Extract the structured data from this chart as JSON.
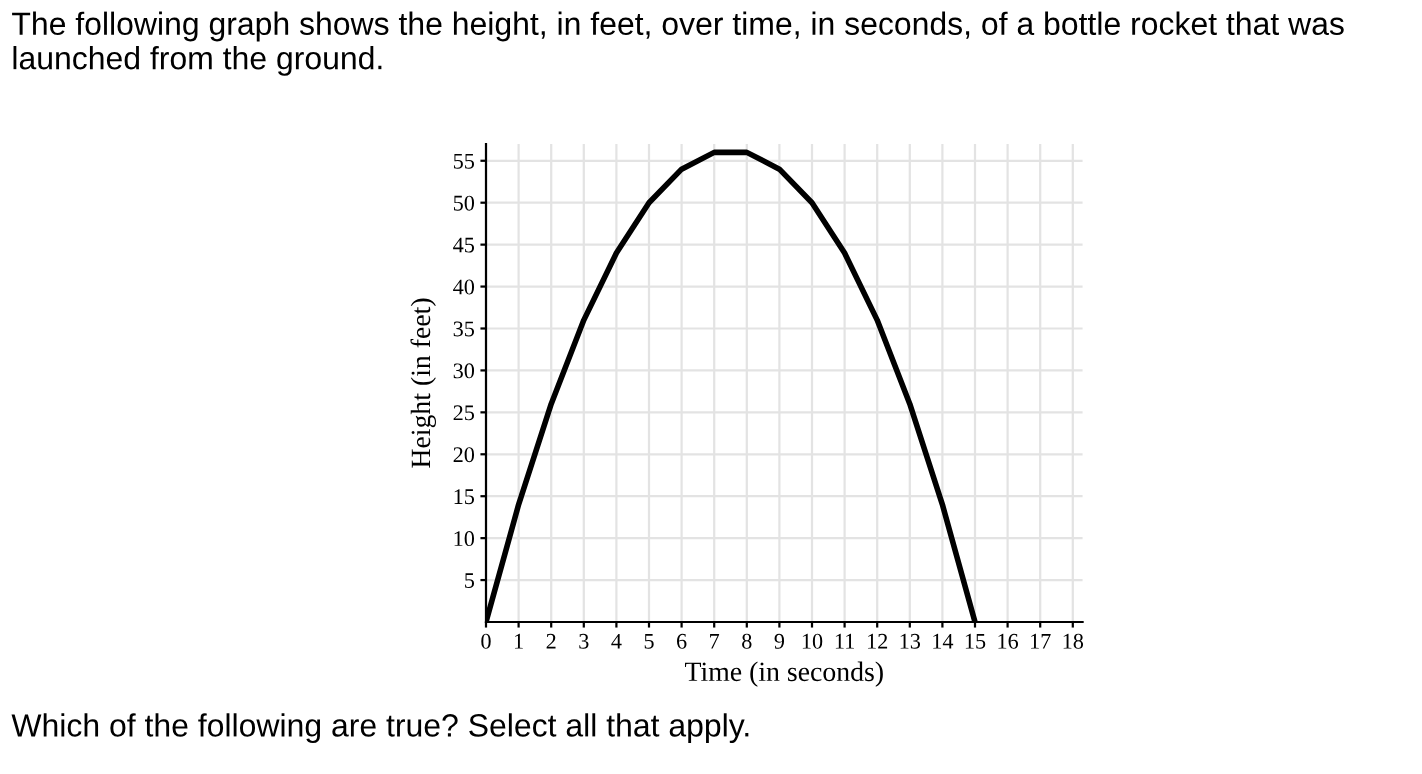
{
  "chart_data": {
    "type": "line",
    "title": "The following graph shows the height, in feet, over time, in seconds, of a bottle rocket that was launched from the ground.",
    "xlabel": "Time (in seconds)",
    "ylabel": "Height (in feet)",
    "annotations": [
      "Which of the following are true? Select all that apply."
    ],
    "series": [
      {
        "color": "#000000",
        "x": [
          0,
          1,
          2,
          3,
          4,
          5,
          6,
          7,
          7.5,
          8,
          9,
          10,
          11,
          12,
          13,
          14,
          15
        ],
        "values": [
          0,
          14,
          26,
          36,
          44,
          50,
          54,
          56,
          56,
          56,
          54,
          50,
          44,
          36,
          26,
          14,
          0
        ]
      }
    ],
    "xlim": [
      0,
      18.3
    ],
    "xticks": [
      0,
      1,
      2,
      3,
      4,
      5,
      6,
      7,
      8,
      9,
      10,
      11,
      12,
      13,
      14,
      15,
      16,
      17,
      18
    ],
    "ylim": [
      0,
      57
    ],
    "yticks": [
      5,
      10,
      15,
      20,
      25,
      30,
      35,
      40,
      45,
      50,
      55
    ],
    "grid": true,
    "marker": "none",
    "line_style": "solid"
  }
}
